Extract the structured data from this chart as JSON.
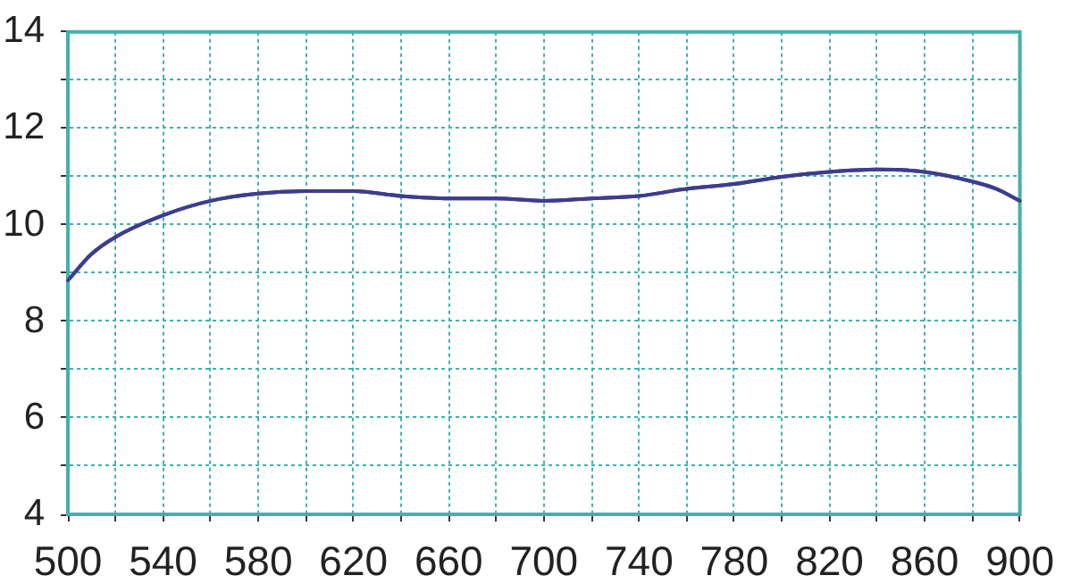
{
  "chart_data": {
    "type": "line",
    "x": [
      500,
      510,
      520,
      540,
      560,
      580,
      600,
      620,
      640,
      660,
      680,
      700,
      720,
      740,
      760,
      780,
      800,
      820,
      840,
      860,
      880,
      890,
      900
    ],
    "values": [
      8.85,
      9.4,
      9.75,
      10.2,
      10.5,
      10.65,
      10.7,
      10.7,
      10.6,
      10.55,
      10.55,
      10.5,
      10.55,
      10.6,
      10.75,
      10.85,
      11.0,
      11.1,
      11.15,
      11.1,
      10.9,
      10.75,
      10.5
    ],
    "color": "#3d3d8f",
    "xlim": [
      500,
      900
    ],
    "xticks": [
      500,
      {
        "value": 520,
        "label": null
      },
      540,
      {
        "value": 560,
        "label": null
      },
      580,
      {
        "value": 600,
        "label": null
      },
      620,
      {
        "value": 640,
        "label": null
      },
      660,
      {
        "value": 680,
        "label": null
      },
      700,
      {
        "value": 720,
        "label": null
      },
      740,
      {
        "value": 760,
        "label": null
      },
      780,
      {
        "value": 800,
        "label": null
      },
      820,
      {
        "value": 840,
        "label": null
      },
      860,
      {
        "value": 880,
        "label": null
      },
      900
    ],
    "ylim": [
      4,
      14
    ],
    "yticks": [
      4,
      {
        "value": 5,
        "label": null
      },
      6,
      {
        "value": 7,
        "label": null
      },
      8,
      {
        "value": 9,
        "label": null
      },
      10,
      {
        "value": 11,
        "label": null
      },
      12,
      {
        "value": 13,
        "label": null
      },
      14
    ],
    "grid": true
  }
}
